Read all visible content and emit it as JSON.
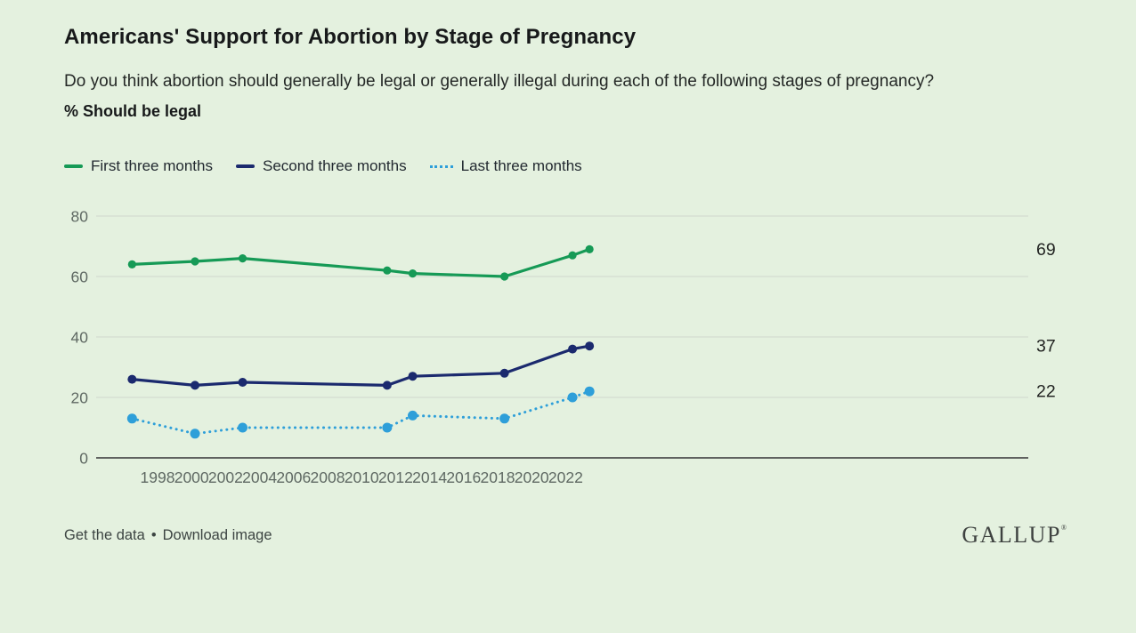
{
  "header": {
    "title": "Americans' Support for Abortion by Stage of Pregnancy",
    "question": "Do you think abortion should generally be legal or generally illegal during each of the following stages of pregnancy?",
    "measure_label": "% Should be legal"
  },
  "colors": {
    "background": "#e4f1df",
    "grid": "#d3ddd0",
    "axis": "#4e4e4e",
    "tick_text": "#5f6963",
    "end_label_text": "#232523",
    "green": "#169a56",
    "navy": "#1b2a6e",
    "light_blue": "#2e9fd9"
  },
  "chart_data": {
    "type": "line",
    "title": "Americans' Support for Abortion by Stage of Pregnancy",
    "subtitle": "% Should be legal",
    "x": [
      1996.5,
      2000.2,
      2003.0,
      2011.5,
      2013.0,
      2018.4,
      2022.4,
      2023.4
    ],
    "x_tick_labels": [
      "1998",
      "2000",
      "2002",
      "2004",
      "2006",
      "2008",
      "2010",
      "2012",
      "2014",
      "2016",
      "2018",
      "2020",
      "2022"
    ],
    "yticks": [
      0,
      20,
      40,
      60,
      80
    ],
    "ylim": [
      0,
      80
    ],
    "grid": "horizontal",
    "legend_position": "top-left",
    "series": [
      {
        "name": "First three months",
        "color": "#169a56",
        "line_style": "solid",
        "values": [
          64,
          65,
          66,
          62,
          61,
          60,
          67,
          69
        ],
        "end_label": "69"
      },
      {
        "name": "Second three months",
        "color": "#1b2a6e",
        "line_style": "solid",
        "values": [
          26,
          24,
          25,
          24,
          27,
          28,
          36,
          37
        ],
        "end_label": "37"
      },
      {
        "name": "Last three months",
        "color": "#2e9fd9",
        "line_style": "dotted",
        "values": [
          13,
          8,
          10,
          10,
          14,
          13,
          20,
          22
        ],
        "end_label": "22"
      }
    ]
  },
  "footer": {
    "get_data_label": "Get the data",
    "separator": "•",
    "download_label": "Download image",
    "logo": "GALLUP",
    "logo_mark": "®"
  }
}
